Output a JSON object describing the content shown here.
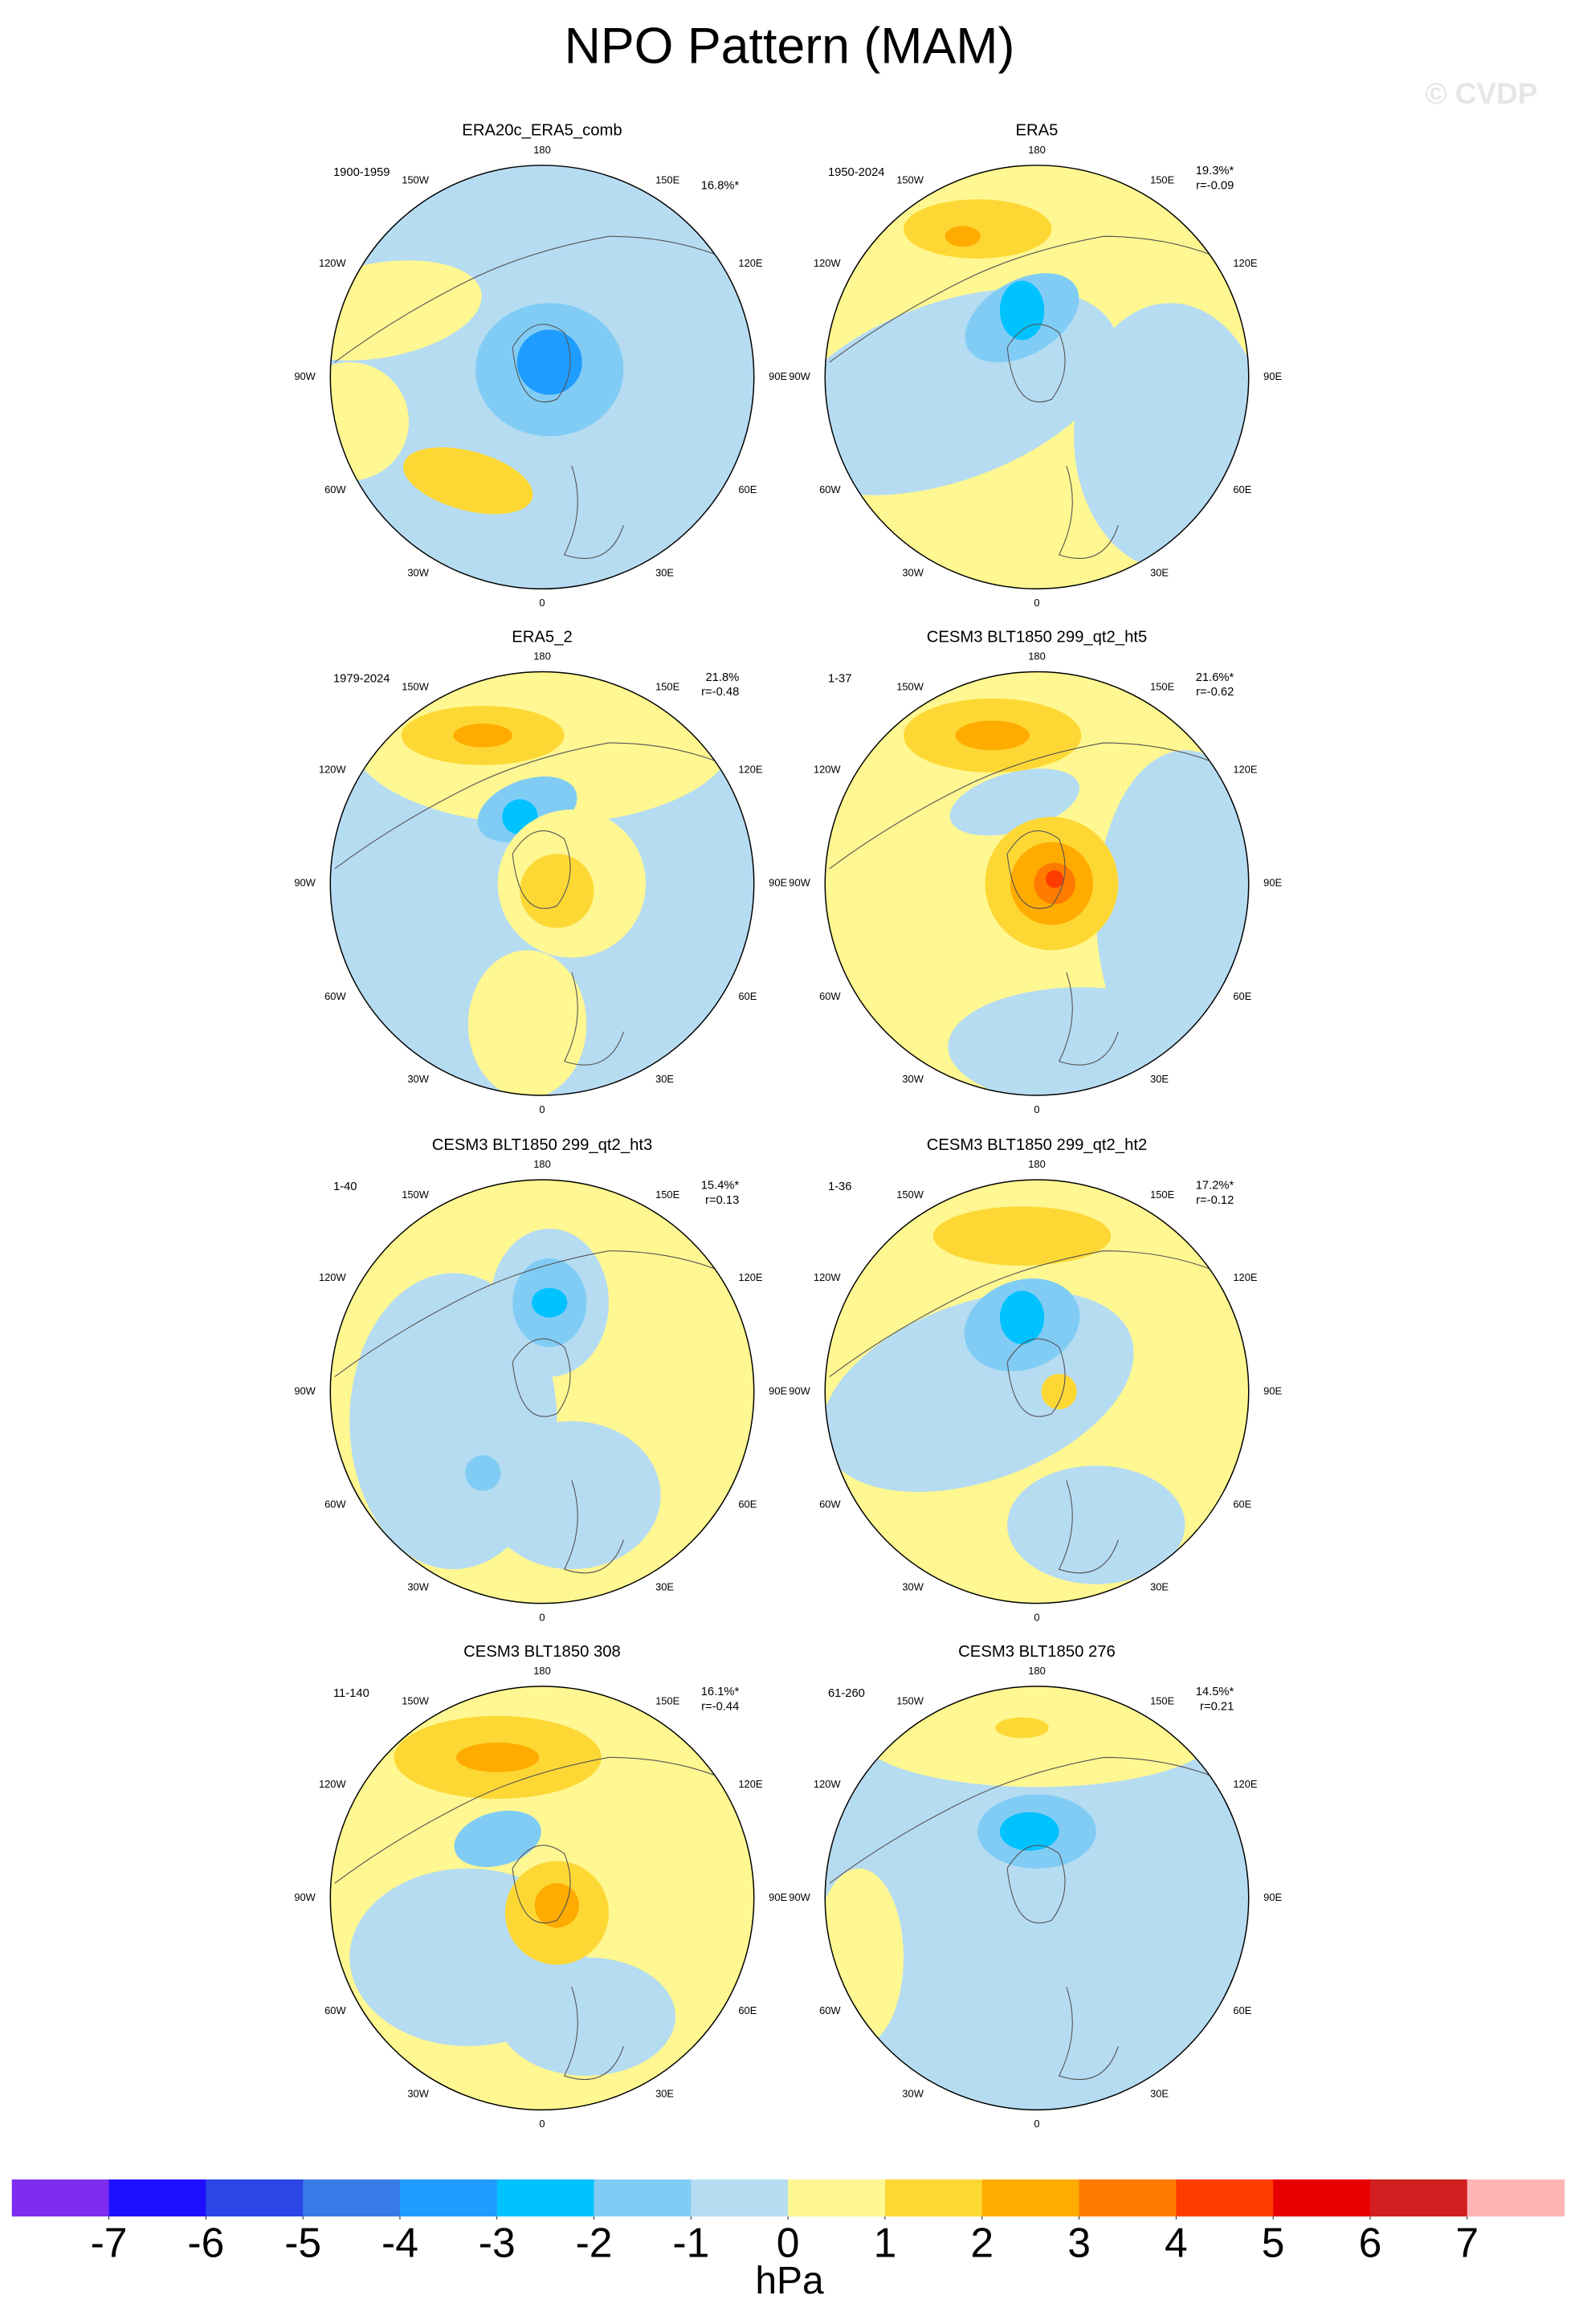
{
  "title": "NPO Pattern (MAM)",
  "watermark": "© CVDP",
  "lon_labels": [
    "180",
    "150E",
    "120E",
    "90E",
    "60E",
    "30E",
    "0",
    "30W",
    "60W",
    "90W",
    "120W",
    "150W"
  ],
  "panels": [
    {
      "title": "ERA20c_ERA5_comb",
      "period": "1900-1959",
      "pct": "16.8%*"
    },
    {
      "title": "ERA5",
      "period": "1950-2024",
      "pct": "19.3%*",
      "r": "r=-0.09"
    },
    {
      "title": "ERA5_2",
      "period": "1979-2024",
      "pct": "21.8%",
      "r": "r=-0.48"
    },
    {
      "title": "CESM3 BLT1850 299_qt2_ht5",
      "period": "1-37",
      "pct": "21.6%*",
      "r": "r=-0.62"
    },
    {
      "title": "CESM3 BLT1850 299_qt2_ht3",
      "period": "1-40",
      "pct": "15.4%*",
      "r": "r=0.13"
    },
    {
      "title": "CESM3 BLT1850 299_qt2_ht2",
      "period": "1-36",
      "pct": "17.2%*",
      "r": "r=-0.12"
    },
    {
      "title": "CESM3 BLT1850 308",
      "period": "11-140",
      "pct": "16.1%*",
      "r": "r=-0.44"
    },
    {
      "title": "CESM3 BLT1850 276",
      "period": "61-260",
      "pct": "14.5%*",
      "r": "r=0.21"
    }
  ],
  "colorbar": {
    "colors": [
      "#7e2cf0",
      "#1e10ff",
      "#2c45e6",
      "#3a7ae8",
      "#1f9cff",
      "#00c2ff",
      "#80ccf5",
      "#b6dcf2",
      "#fff791",
      "#fdd835",
      "#ffab00",
      "#ff7b00",
      "#ff3c00",
      "#e80000",
      "#d21f20",
      "#ffb4b4"
    ],
    "ticks": [
      -7,
      -6,
      -5,
      -4,
      -3,
      -2,
      -1,
      0,
      1,
      2,
      3,
      4,
      5,
      6,
      7
    ],
    "units": "hPa"
  }
}
